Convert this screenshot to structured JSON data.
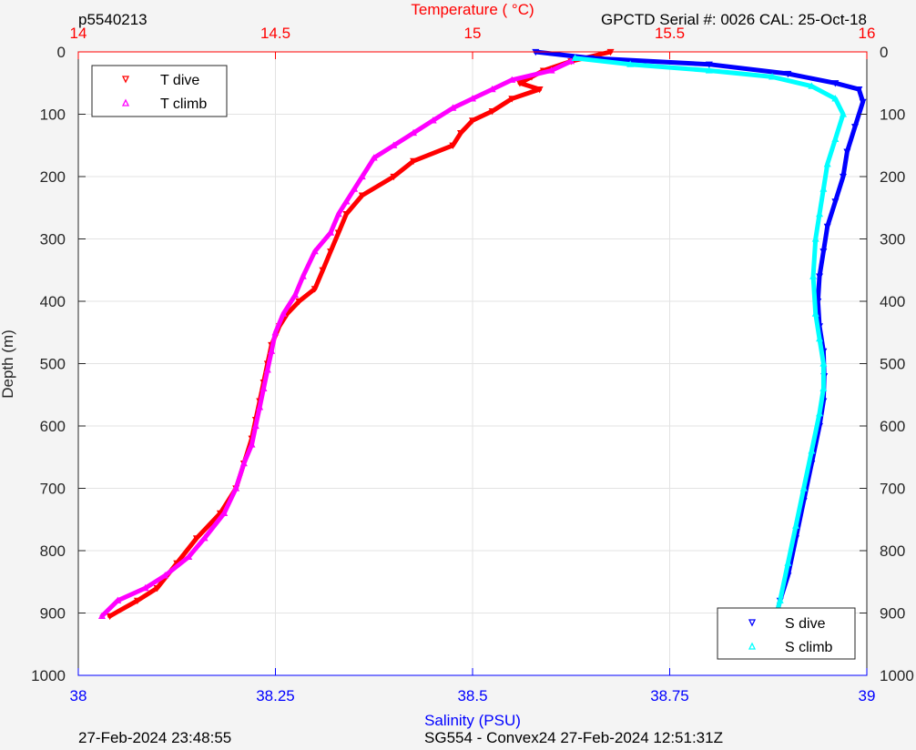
{
  "header": {
    "profile_id": "p5540213",
    "serial": "GPCTD Serial #: 0026 CAL: 25-Oct-18"
  },
  "footer": {
    "left": "27-Feb-2024 23:48:55",
    "center": "SG554 - Convex24 27-Feb-2024 12:51:31Z"
  },
  "colors": {
    "t_dive": "#ff0000",
    "t_climb": "#ff00ff",
    "s_dive": "#0000ff",
    "s_climb": "#00ffff",
    "temp_axis": "#ff0000",
    "sal_axis": "#0000ff"
  },
  "chart_data": {
    "type": "scatter",
    "grid": true,
    "y_axis": {
      "label": "Depth (m)",
      "range": [
        0,
        1000
      ],
      "reversed": true,
      "ticks": [
        "0",
        "100",
        "200",
        "300",
        "400",
        "500",
        "600",
        "700",
        "800",
        "900",
        "1000"
      ]
    },
    "temp_axis": {
      "label": "Temperature (    °C)",
      "position": "top",
      "range": [
        14,
        16
      ],
      "ticks": [
        "14",
        "14.5",
        "15",
        "15.5",
        "16"
      ]
    },
    "sal_axis": {
      "label": "Salinity (PSU)",
      "position": "bottom",
      "range": [
        38,
        39
      ],
      "ticks": [
        "38",
        "38.25",
        "38.5",
        "38.75",
        "39"
      ]
    },
    "legend_temp": {
      "placement": "top-left",
      "entries": [
        "T dive",
        "T climb"
      ]
    },
    "legend_sal": {
      "placement": "bottom-right",
      "entries": [
        "S dive",
        "S climb"
      ]
    },
    "series": [
      {
        "name": "T dive",
        "axis": "temp",
        "x": [
          15.35,
          15.25,
          15.18,
          15.15,
          15.12,
          15.17,
          15.1,
          15.05,
          15.0,
          14.97,
          14.95,
          14.85,
          14.8,
          14.72,
          14.68,
          14.66,
          14.64,
          14.62,
          14.6,
          14.56,
          14.53,
          14.51,
          14.49,
          14.48,
          14.47,
          14.46,
          14.45,
          14.44,
          14.42,
          14.4,
          14.36,
          14.3,
          14.25,
          14.2,
          14.15,
          14.08
        ],
        "y": [
          0,
          15,
          30,
          40,
          50,
          60,
          75,
          95,
          110,
          130,
          150,
          175,
          200,
          230,
          260,
          290,
          320,
          350,
          380,
          400,
          420,
          440,
          470,
          500,
          530,
          560,
          590,
          620,
          660,
          700,
          740,
          780,
          820,
          860,
          880,
          905
        ]
      },
      {
        "name": "T climb",
        "axis": "temp",
        "x": [
          15.25,
          15.2,
          15.1,
          15.05,
          15.0,
          14.95,
          14.9,
          14.85,
          14.8,
          14.75,
          14.72,
          14.7,
          14.68,
          14.66,
          14.64,
          14.6,
          14.57,
          14.55,
          14.52,
          14.5,
          14.49,
          14.48,
          14.47,
          14.46,
          14.45,
          14.44,
          14.42,
          14.4,
          14.37,
          14.32,
          14.28,
          14.22,
          14.17,
          14.1,
          14.06
        ],
        "y": [
          15,
          30,
          45,
          60,
          75,
          90,
          110,
          130,
          150,
          170,
          200,
          220,
          240,
          260,
          290,
          320,
          360,
          390,
          420,
          450,
          480,
          510,
          540,
          570,
          600,
          630,
          660,
          700,
          740,
          780,
          810,
          840,
          860,
          880,
          905
        ]
      },
      {
        "name": "S dive",
        "axis": "sal",
        "x": [
          38.58,
          38.65,
          38.8,
          38.9,
          38.96,
          38.99,
          38.995,
          38.985,
          38.975,
          38.97,
          38.96,
          38.95,
          38.945,
          38.94,
          38.938,
          38.94,
          38.945,
          38.946,
          38.945,
          38.94,
          38.93,
          38.92,
          38.91,
          38.9,
          38.89,
          38.885
        ],
        "y": [
          0,
          10,
          20,
          35,
          50,
          60,
          80,
          120,
          160,
          200,
          240,
          280,
          320,
          360,
          400,
          440,
          480,
          520,
          560,
          600,
          660,
          720,
          780,
          840,
          880,
          905
        ]
      },
      {
        "name": "S climb",
        "axis": "sal",
        "x": [
          38.63,
          38.7,
          38.8,
          38.88,
          38.93,
          38.96,
          38.97,
          38.96,
          38.95,
          38.945,
          38.94,
          38.935,
          38.932,
          38.935,
          38.94,
          38.945,
          38.945,
          38.94,
          38.93,
          38.92,
          38.91,
          38.9,
          38.89,
          38.885
        ],
        "y": [
          10,
          20,
          30,
          40,
          55,
          75,
          100,
          140,
          180,
          220,
          260,
          300,
          360,
          420,
          460,
          500,
          540,
          580,
          640,
          700,
          760,
          820,
          880,
          905
        ]
      }
    ]
  }
}
